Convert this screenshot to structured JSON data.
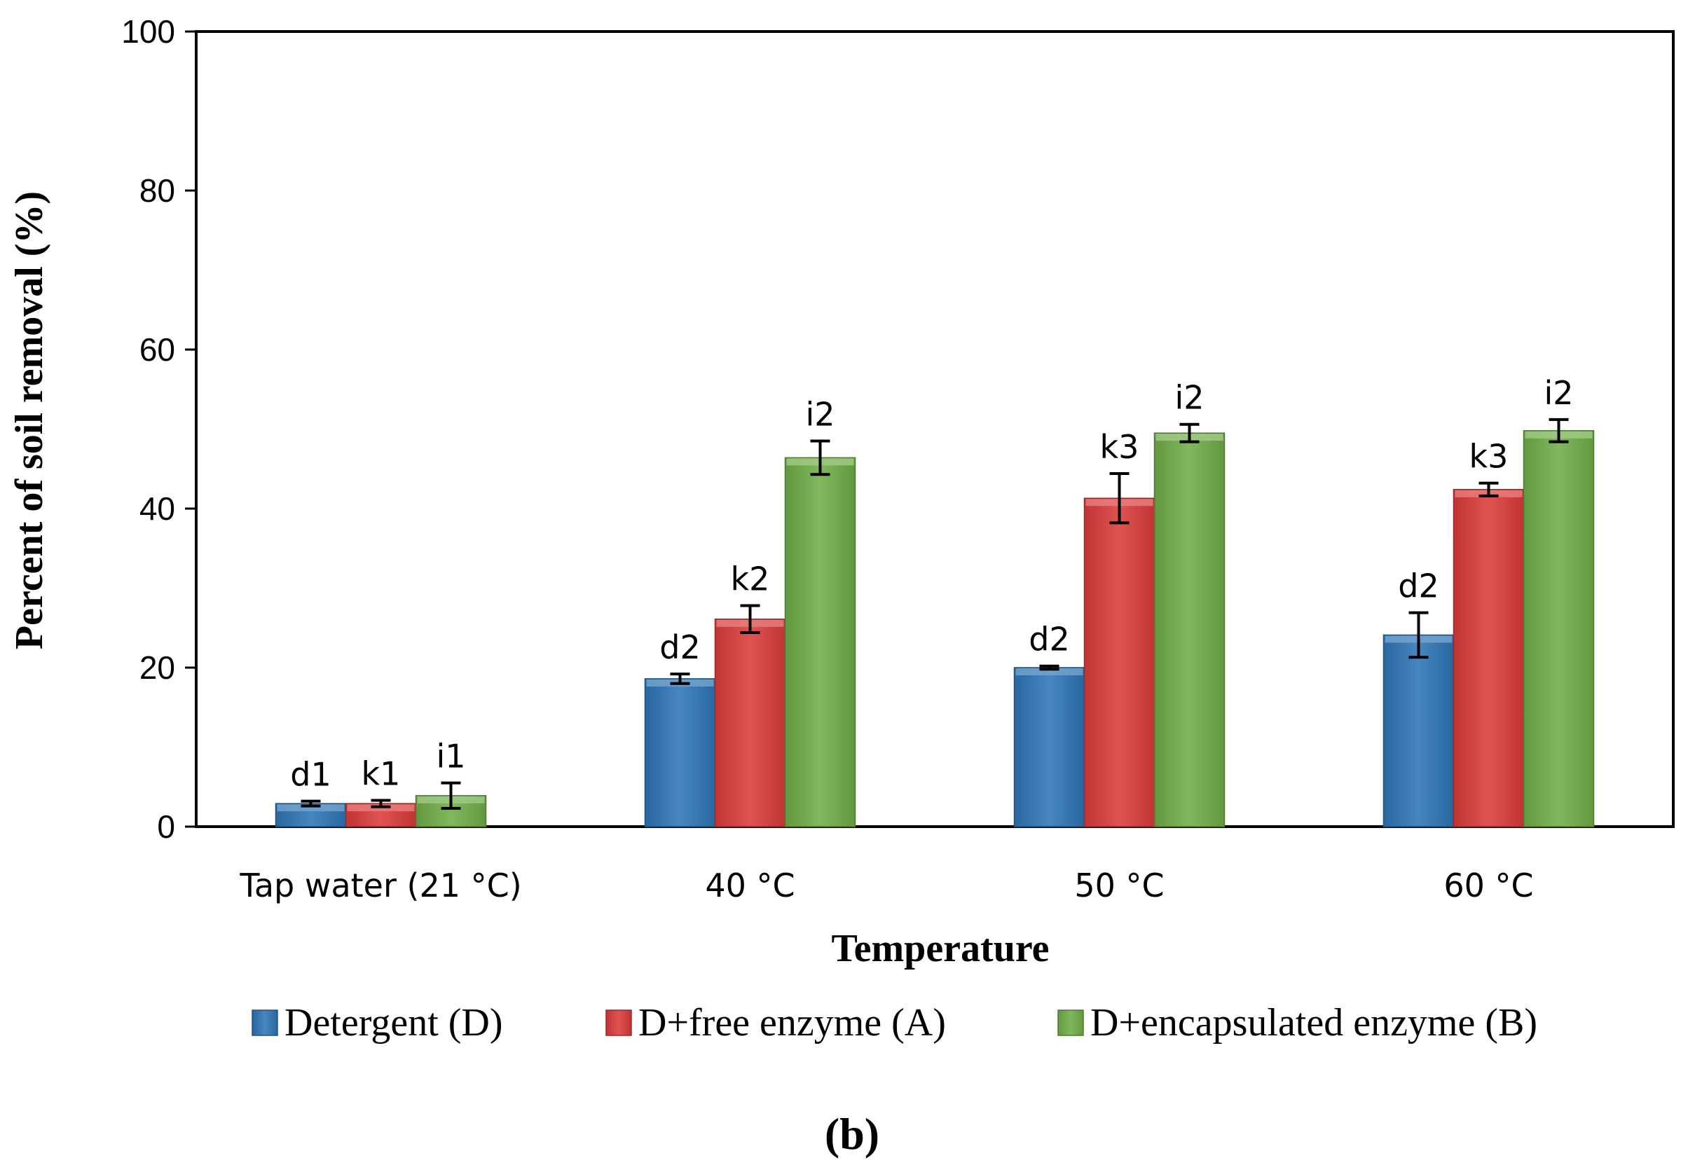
{
  "chart_data": {
    "type": "bar",
    "title": "",
    "xlabel": "Temperature",
    "ylabel": "Percent of soil removal (%)",
    "ylim": [
      0,
      100
    ],
    "yticks": [
      "0",
      "20",
      "40",
      "60",
      "80",
      "100"
    ],
    "grid": false,
    "legend_position": "bottom",
    "categories": [
      "Tap water (21 °C)",
      "40 °C",
      "50 °C",
      "60  °C"
    ],
    "series": [
      {
        "name": "Detergent (D)",
        "color": "#2E75B6",
        "values": [
          2.9,
          18.6,
          20.0,
          24.1
        ],
        "errors": [
          0.3,
          0.6,
          0.2,
          2.8
        ],
        "labels": [
          "d1",
          "d2",
          "d2",
          "d2"
        ]
      },
      {
        "name": "D+free enzyme (A)",
        "color": "#DC3B3B",
        "values": [
          2.9,
          26.1,
          41.3,
          42.4
        ],
        "errors": [
          0.4,
          1.7,
          3.1,
          0.8
        ],
        "labels": [
          "k1",
          "k2",
          "k3",
          "k3"
        ]
      },
      {
        "name": "D+encapsulated enzyme (B)",
        "color": "#70AD47",
        "values": [
          3.9,
          46.4,
          49.5,
          49.8
        ],
        "errors": [
          1.6,
          2.1,
          1.1,
          1.4
        ],
        "labels": [
          "i1",
          "i2",
          "i2",
          "i2"
        ]
      }
    ]
  },
  "caption": "(b)"
}
